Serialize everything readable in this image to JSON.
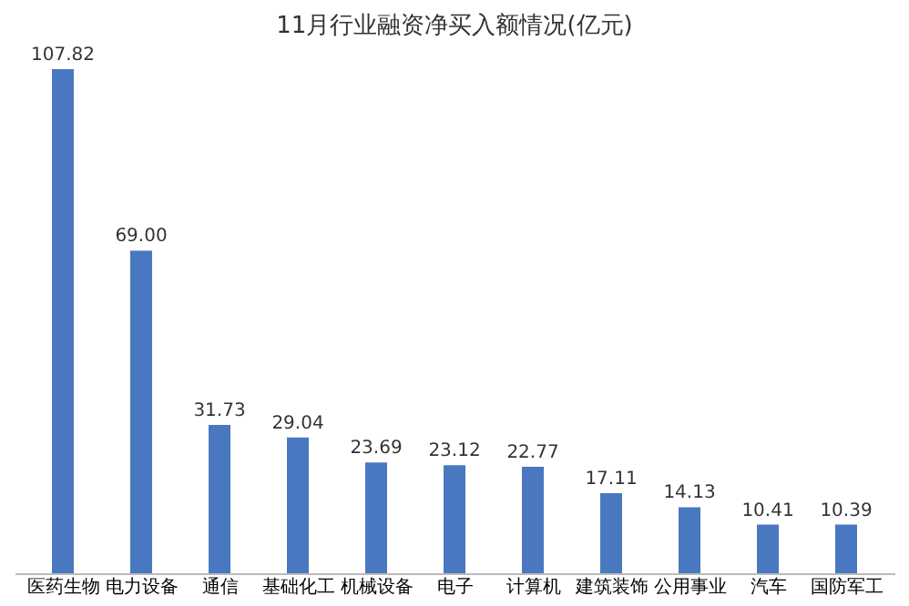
{
  "chart_data": {
    "type": "bar",
    "title": "11月行业融资净买入额情况(亿元)",
    "categories": [
      "医药生物",
      "电力设备",
      "通信",
      "基础化工",
      "机械设备",
      "电子",
      "计算机",
      "建筑装饰",
      "公用事业",
      "汽车",
      "国防军工"
    ],
    "values": [
      107.82,
      69.0,
      31.73,
      29.04,
      23.69,
      23.12,
      22.77,
      17.11,
      14.13,
      10.41,
      10.39
    ],
    "value_labels": [
      "107.82",
      "69.00",
      "31.73",
      "29.04",
      "23.69",
      "23.12",
      "22.77",
      "17.11",
      "14.13",
      "10.41",
      "10.39"
    ],
    "color": "#4a78c0",
    "grid": false
  }
}
